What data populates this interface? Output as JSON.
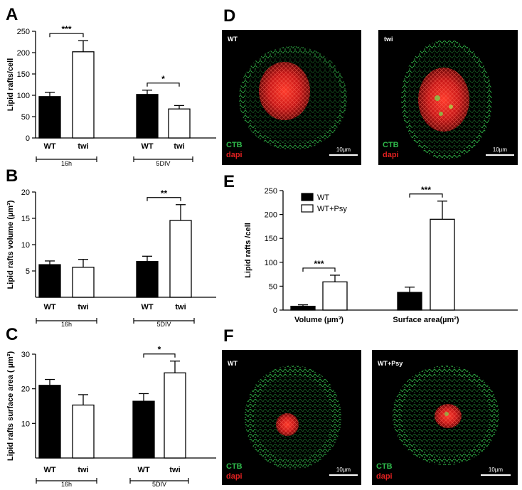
{
  "chart_data": [
    {
      "panel": "A",
      "type": "bar",
      "ylabel": "Lipid rafts/cell",
      "ylim": [
        0,
        250
      ],
      "yticks": [
        0,
        50,
        100,
        150,
        200,
        250
      ],
      "categories": [
        "WT",
        "twi",
        "WT",
        "twi"
      ],
      "groups": [
        "16h",
        "5DIV"
      ],
      "colors": [
        "#000000",
        "#ffffff",
        "#000000",
        "#ffffff"
      ],
      "values": [
        97,
        202,
        102,
        68
      ],
      "errors": [
        10,
        26,
        10,
        8
      ],
      "significance": [
        {
          "pair": [
            0,
            1
          ],
          "label": "***"
        },
        {
          "pair": [
            2,
            3
          ],
          "label": "*"
        }
      ]
    },
    {
      "panel": "B",
      "type": "bar",
      "ylabel": "Lipid rafts volume (µm³)",
      "ylim": [
        0,
        20
      ],
      "yticks": [
        5,
        10,
        15,
        20
      ],
      "categories": [
        "WT",
        "twi",
        "WT",
        "twi"
      ],
      "groups": [
        "16h",
        "5DIV"
      ],
      "colors": [
        "#000000",
        "#ffffff",
        "#000000",
        "#ffffff"
      ],
      "values": [
        6.2,
        5.7,
        6.8,
        14.6
      ],
      "errors": [
        0.7,
        1.5,
        1.0,
        3.0
      ],
      "significance": [
        {
          "pair": [
            2,
            3
          ],
          "label": "**"
        }
      ]
    },
    {
      "panel": "C",
      "type": "bar",
      "ylabel": "Lipid rafts surface area ( µm²)",
      "ylim": [
        0,
        30
      ],
      "yticks": [
        10,
        20,
        30
      ],
      "categories": [
        "WT",
        "twi",
        "WT",
        "twi"
      ],
      "groups": [
        "16h",
        "5DIV"
      ],
      "colors": [
        "#000000",
        "#ffffff",
        "#000000",
        "#ffffff"
      ],
      "values": [
        21.0,
        15.3,
        16.4,
        24.6
      ],
      "errors": [
        1.7,
        3.0,
        2.2,
        3.4
      ],
      "significance": [
        {
          "pair": [
            2,
            3
          ],
          "label": "*"
        }
      ]
    },
    {
      "panel": "E",
      "type": "bar",
      "ylabel": "Lipid rafts /cell",
      "ylim": [
        0,
        250
      ],
      "yticks": [
        0,
        50,
        100,
        150,
        200,
        250
      ],
      "groups": [
        "Volume (µm³)",
        "Surface area(µm²)"
      ],
      "legend": [
        "WT",
        "WT+Psy"
      ],
      "legend_position": "top-left",
      "colors": [
        "#000000",
        "#ffffff"
      ],
      "values": [
        8,
        59,
        37,
        190
      ],
      "errors": [
        3,
        14,
        11,
        38
      ],
      "significance": [
        {
          "pair": [
            0,
            1
          ],
          "label": "***"
        },
        {
          "pair": [
            2,
            3
          ],
          "label": "***"
        }
      ]
    }
  ],
  "micrographs": {
    "D": {
      "images": [
        {
          "title": "WT"
        },
        {
          "title": "twi"
        }
      ]
    },
    "F": {
      "images": [
        {
          "title": "WT"
        },
        {
          "title": "WT+Psy"
        }
      ]
    },
    "stain_labels": [
      "CTB",
      "dapi"
    ],
    "stain_colors": [
      "#2fb84a",
      "#e02020"
    ],
    "scale_label": "10µm"
  }
}
